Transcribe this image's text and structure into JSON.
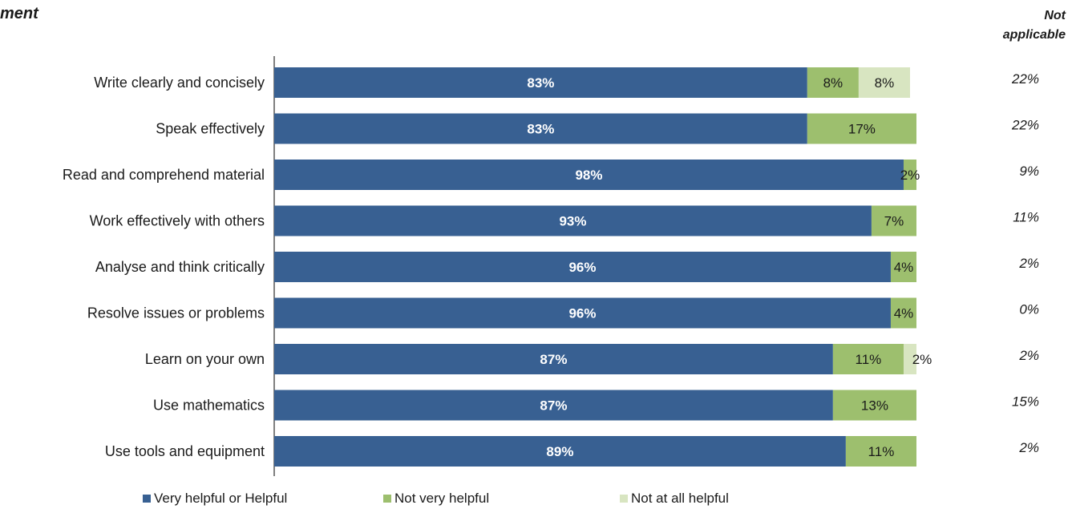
{
  "chart_data": {
    "type": "bar",
    "stacked": true,
    "orientation": "horizontal",
    "title_partial": "ment",
    "na_header": [
      "Not",
      "applicable"
    ],
    "categories": [
      "Write clearly and concisely",
      "Speak effectively",
      "Read and comprehend material",
      "Work effectively with others",
      "Analyse and think critically",
      "Resolve issues or problems",
      "Learn on your own",
      "Use mathematics",
      "Use tools and equipment"
    ],
    "series": [
      {
        "name": "Very helpful or Helpful",
        "color": "#386092",
        "values": [
          83,
          83,
          98,
          93,
          96,
          96,
          87,
          87,
          89
        ]
      },
      {
        "name": "Not very helpful",
        "color": "#9dbf6e",
        "values": [
          8,
          17,
          2,
          7,
          4,
          4,
          11,
          13,
          11
        ]
      },
      {
        "name": "Not at all helpful",
        "color": "#d8e5c1",
        "values": [
          8,
          0,
          0,
          0,
          0,
          0,
          2,
          0,
          0
        ]
      }
    ],
    "not_applicable": [
      "22%",
      "22%",
      "9%",
      "11%",
      "2%",
      "0%",
      "2%",
      "15%",
      "2%"
    ],
    "xlim": [
      0,
      100
    ],
    "grid": false,
    "legend_position": "bottom"
  }
}
